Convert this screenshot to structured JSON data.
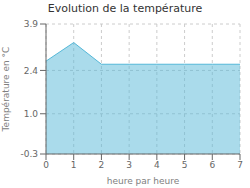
{
  "chart_data": {
    "type": "area",
    "title": "Evolution de la température",
    "xlabel": "heure par heure",
    "ylabel": "Température en °C",
    "x": [
      0,
      1,
      2,
      3,
      4,
      5,
      6,
      7
    ],
    "values": [
      2.7,
      3.3,
      2.6,
      2.6,
      2.6,
      2.6,
      2.6,
      2.6
    ],
    "color": "#55b8d8",
    "xlim": [
      0,
      7
    ],
    "ylim": [
      -0.3,
      3.9
    ],
    "xticks": [
      0,
      1,
      2,
      3,
      4,
      5,
      6,
      7
    ],
    "yticks": [
      -0.3,
      {
        "value": 1.0,
        "label": "1.0"
      },
      2.4,
      3.9
    ],
    "grid": true
  }
}
